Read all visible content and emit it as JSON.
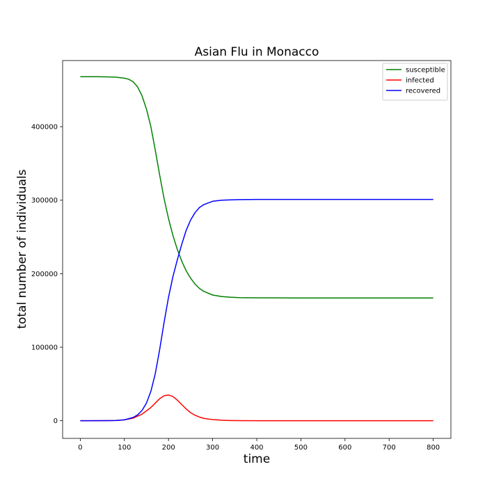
{
  "chart_data": {
    "type": "line",
    "title": "Asian Flu in Monacco",
    "xlabel": "time",
    "ylabel": "total number of individuals",
    "xlim": [
      -40,
      840
    ],
    "ylim": [
      -24000,
      490000
    ],
    "xticks": [
      0,
      100,
      200,
      300,
      400,
      500,
      600,
      700,
      800
    ],
    "yticks": [
      0,
      100000,
      200000,
      300000,
      400000
    ],
    "grid": false,
    "legend_position": "top-right",
    "series": [
      {
        "name": "susceptible",
        "color": "#008000",
        "x": [
          0,
          40,
          60,
          80,
          100,
          110,
          120,
          130,
          140,
          150,
          160,
          170,
          180,
          190,
          200,
          210,
          220,
          230,
          240,
          250,
          260,
          270,
          280,
          300,
          320,
          340,
          360,
          400,
          500,
          600,
          700,
          800
        ],
        "y": [
          468000,
          468000,
          467800,
          467400,
          466000,
          464500,
          461000,
          454000,
          442000,
          424000,
          400000,
          368000,
          334000,
          302000,
          275000,
          252000,
          233000,
          217000,
          204000,
          194000,
          186000,
          180000,
          176000,
          171000,
          169000,
          168000,
          167500,
          167200,
          167000,
          167000,
          167000,
          167000
        ]
      },
      {
        "name": "infected",
        "color": "#ff0000",
        "x": [
          0,
          60,
          80,
          100,
          120,
          140,
          160,
          170,
          180,
          190,
          200,
          210,
          220,
          230,
          240,
          250,
          260,
          270,
          280,
          300,
          320,
          340,
          360,
          400,
          500,
          600,
          700,
          800
        ],
        "y": [
          0,
          150,
          400,
          1200,
          3500,
          9000,
          18000,
          24000,
          30000,
          34000,
          35000,
          33000,
          28000,
          22000,
          16000,
          11000,
          7500,
          5000,
          3200,
          1500,
          700,
          300,
          150,
          50,
          10,
          0,
          0,
          0
        ]
      },
      {
        "name": "recovered",
        "color": "#0000ff",
        "x": [
          0,
          60,
          80,
          100,
          120,
          130,
          140,
          150,
          160,
          170,
          180,
          190,
          200,
          210,
          220,
          230,
          240,
          250,
          260,
          270,
          280,
          300,
          320,
          340,
          360,
          400,
          500,
          600,
          700,
          800
        ],
        "y": [
          0,
          100,
          300,
          1200,
          4500,
          8000,
          14000,
          24000,
          40000,
          64000,
          97000,
          134000,
          168000,
          196000,
          219000,
          240000,
          259000,
          273000,
          283000,
          290000,
          294000,
          298500,
          300000,
          300500,
          300800,
          301000,
          301000,
          301000,
          301000,
          301000
        ]
      }
    ]
  }
}
